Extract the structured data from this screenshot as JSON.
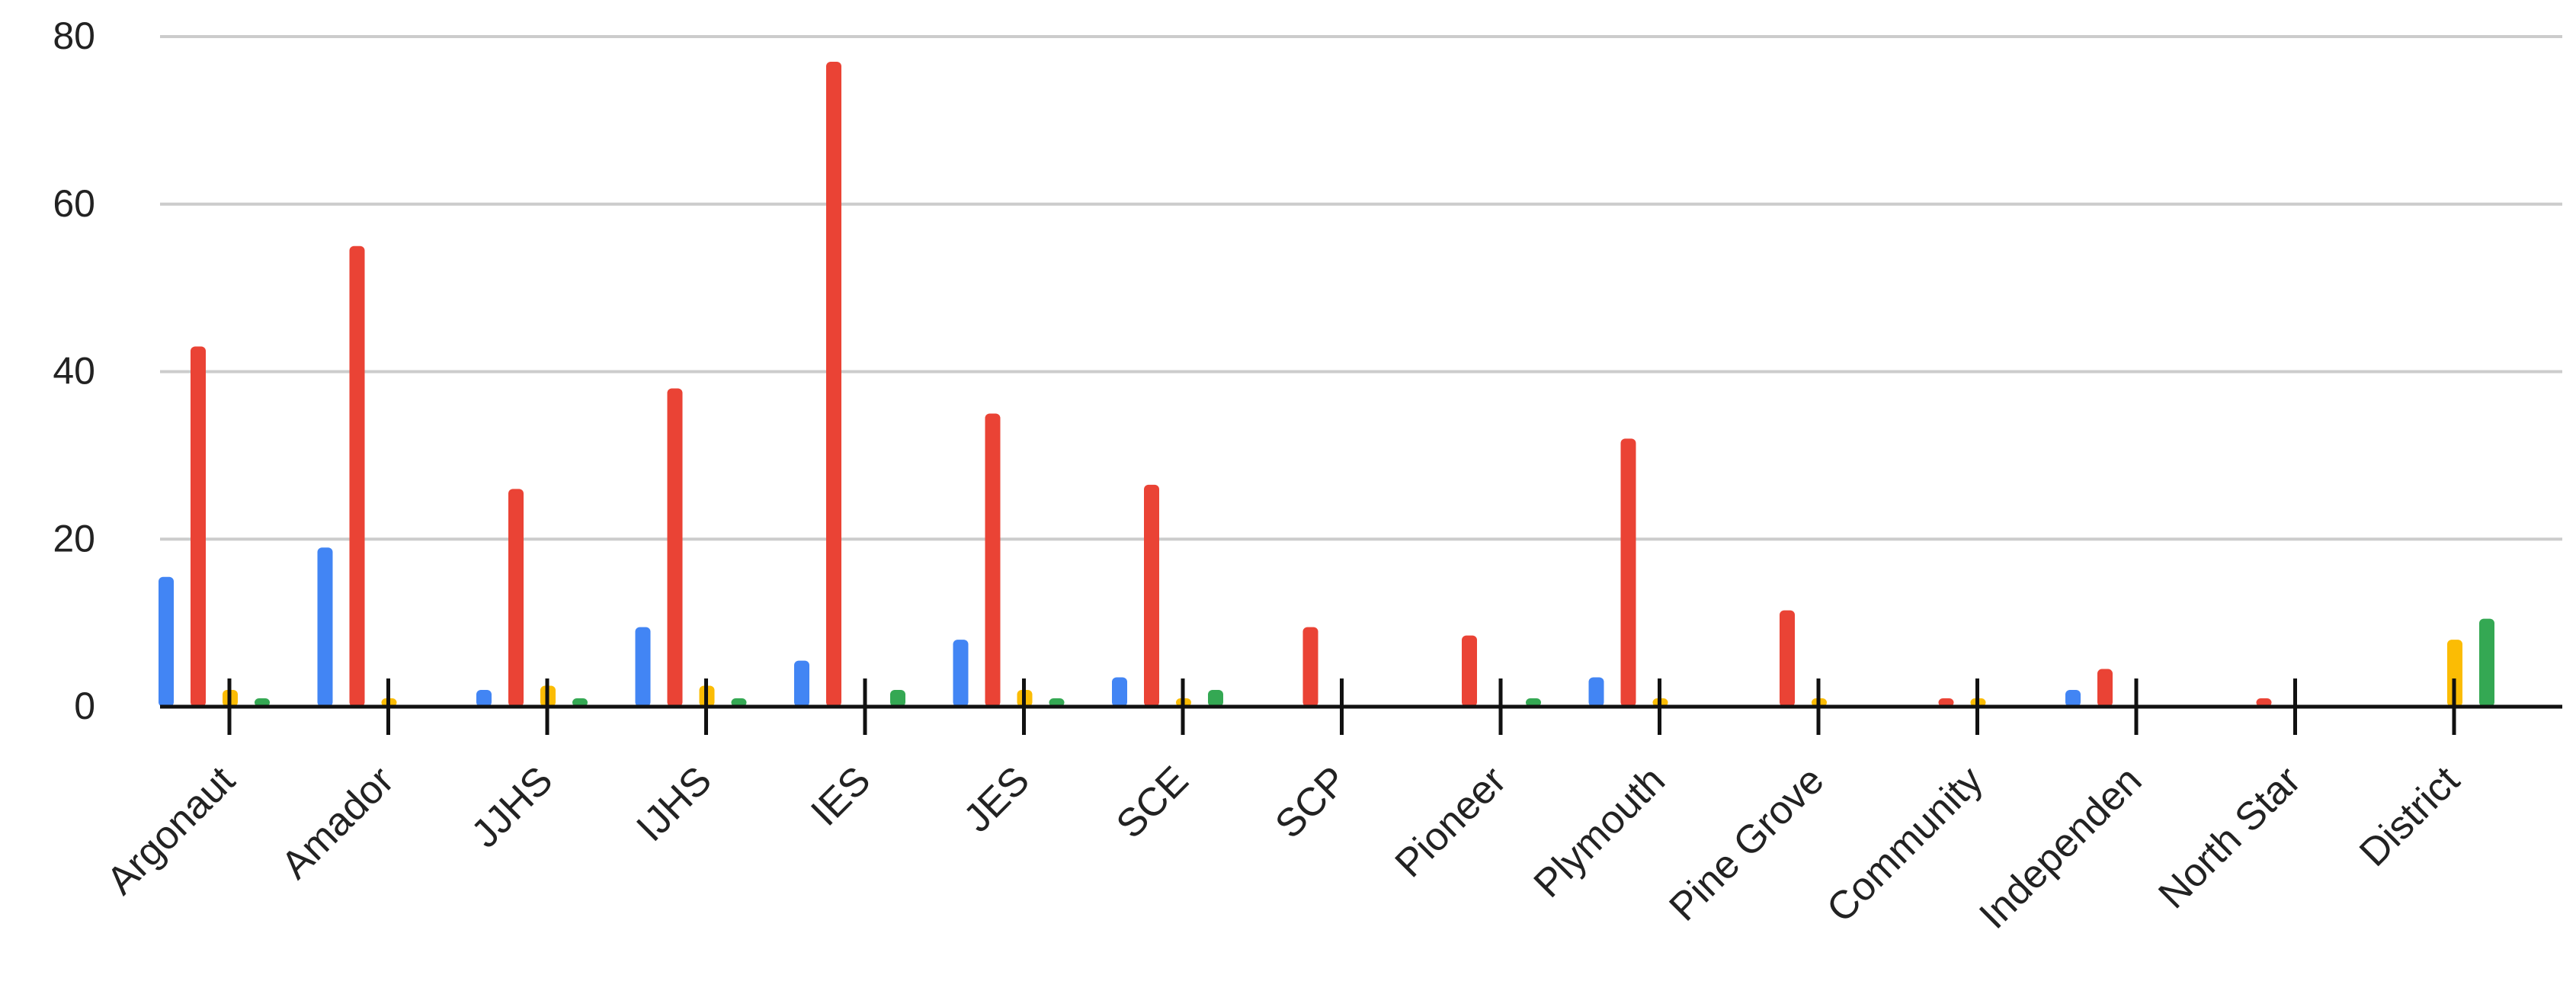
{
  "chart_data": {
    "type": "bar",
    "title": "",
    "xlabel": "",
    "ylabel": "",
    "ylim": [
      0,
      80
    ],
    "yticks": [
      0,
      20,
      40,
      60,
      80
    ],
    "grid": true,
    "legend": "none",
    "categories": [
      "Argonaut",
      "Amador",
      "JJHS",
      "IJHS",
      "IES",
      "JES",
      "SCE",
      "SCP",
      "Pioneer",
      "Plymouth",
      "Pine Grove",
      "Community",
      "Independen",
      "North Star",
      "District"
    ],
    "series": [
      {
        "color": "#4285F4",
        "values": [
          15.5,
          19,
          2,
          9.5,
          5.5,
          8,
          3.5,
          0,
          0,
          3.5,
          0,
          0,
          2,
          0,
          0
        ]
      },
      {
        "color": "#EA4335",
        "values": [
          43,
          55,
          26,
          38,
          77,
          35,
          26.5,
          9.5,
          8.5,
          32,
          11.5,
          1,
          4.5,
          1,
          0
        ]
      },
      {
        "color": "#FBBC04",
        "values": [
          2,
          1,
          2.5,
          2.5,
          0,
          2,
          1,
          0,
          0,
          1,
          1,
          1,
          0,
          0,
          8
        ]
      },
      {
        "color": "#34A853",
        "values": [
          1,
          0,
          1,
          1,
          2,
          1,
          2,
          0,
          1,
          0,
          0,
          0,
          0,
          0,
          10.5
        ]
      }
    ]
  }
}
